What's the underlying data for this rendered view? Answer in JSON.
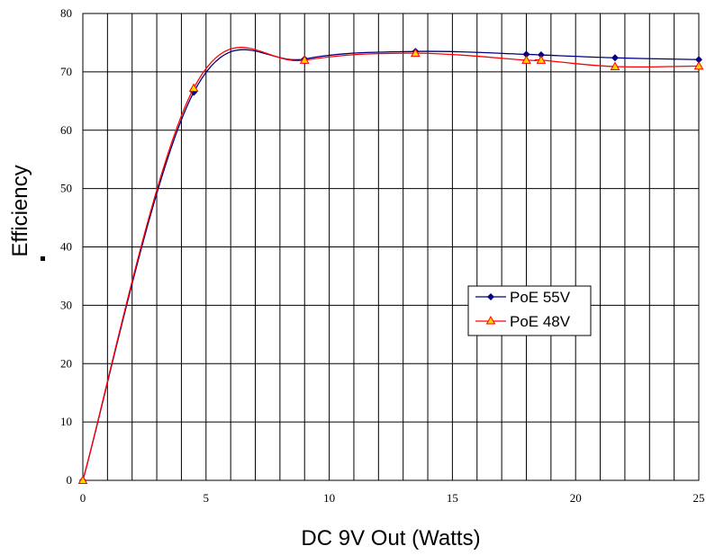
{
  "chart_data": {
    "type": "line",
    "title": "",
    "xlabel": "DC 9V Out (Watts)",
    "ylabel": "Efficiency",
    "xlim": [
      0,
      25
    ],
    "ylim": [
      0,
      80
    ],
    "x_ticks": [
      0,
      5,
      10,
      15,
      20,
      25
    ],
    "y_ticks": [
      0,
      10,
      20,
      30,
      40,
      50,
      60,
      70,
      80
    ],
    "grid": true,
    "legend_position": "center-right",
    "series": [
      {
        "name": "PoE 55V",
        "color": "#000080",
        "marker": "diamond",
        "x": [
          0,
          4.5,
          9.0,
          13.5,
          18.0,
          18.6,
          21.6,
          25.0
        ],
        "y": [
          0,
          66.5,
          72.2,
          73.5,
          73.0,
          72.9,
          72.4,
          72.1
        ]
      },
      {
        "name": "PoE 48V",
        "color": "#ff0000",
        "marker_fill": "#ffd200",
        "marker": "triangle",
        "x": [
          0,
          4.5,
          9.0,
          13.5,
          18.0,
          18.6,
          21.6,
          25.0
        ],
        "y": [
          0,
          67.2,
          72.0,
          73.2,
          72.0,
          72.0,
          70.9,
          71.0
        ]
      }
    ]
  }
}
